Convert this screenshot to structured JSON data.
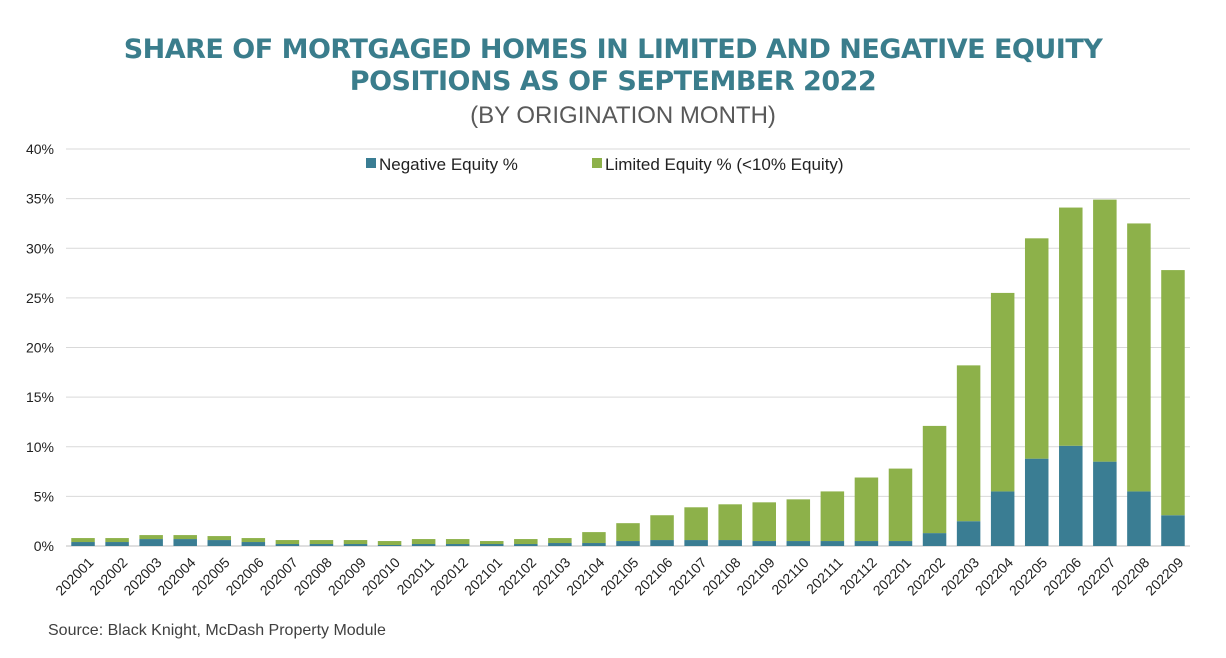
{
  "chart_data": {
    "type": "bar",
    "stacked": true,
    "title": "SHARE OF MORTGAGED HOMES IN LIMITED AND NEGATIVE EQUITY POSITIONS AS OF SEPTEMBER 2022",
    "title_line1": "SHARE OF MORTGAGED HOMES IN LIMITED AND NEGATIVE EQUITY",
    "title_line2": "POSITIONS AS OF SEPTEMBER 2022",
    "subtitle": "(BY ORIGINATION MONTH)",
    "source": "Source: Black Knight, McDash Property Module",
    "ylim": [
      0,
      40
    ],
    "yticks": [
      0,
      5,
      10,
      15,
      20,
      25,
      30,
      35,
      40
    ],
    "ytick_labels": [
      "0%",
      "5%",
      "10%",
      "15%",
      "20%",
      "25%",
      "30%",
      "35%",
      "40%"
    ],
    "grid": true,
    "legend_position": "top",
    "categories": [
      "202001",
      "202002",
      "202003",
      "202004",
      "202005",
      "202006",
      "202007",
      "202008",
      "202009",
      "202010",
      "202011",
      "202012",
      "202101",
      "202102",
      "202103",
      "202104",
      "202105",
      "202106",
      "202107",
      "202108",
      "202109",
      "202110",
      "202111",
      "202112",
      "202201",
      "202202",
      "202203",
      "202204",
      "202205",
      "202206",
      "202207",
      "202208",
      "202209"
    ],
    "series": [
      {
        "name": "Negative Equity %",
        "color": "#3a7d93",
        "values": [
          0.4,
          0.4,
          0.7,
          0.7,
          0.6,
          0.4,
          0.2,
          0.2,
          0.2,
          0.1,
          0.2,
          0.2,
          0.2,
          0.2,
          0.3,
          0.3,
          0.5,
          0.6,
          0.6,
          0.6,
          0.5,
          0.5,
          0.5,
          0.5,
          0.5,
          1.3,
          2.5,
          5.5,
          8.8,
          10.1,
          8.5,
          5.5,
          3.1
        ]
      },
      {
        "name": "Limited Equity % (<10% Equity)",
        "color": "#8db14a",
        "values": [
          0.4,
          0.4,
          0.4,
          0.4,
          0.4,
          0.4,
          0.4,
          0.4,
          0.4,
          0.4,
          0.5,
          0.5,
          0.3,
          0.5,
          0.5,
          1.1,
          1.8,
          2.5,
          3.3,
          3.6,
          3.9,
          4.2,
          5.0,
          6.4,
          7.3,
          10.8,
          15.7,
          20.0,
          22.2,
          24.0,
          26.4,
          27.0,
          24.7
        ]
      }
    ]
  }
}
